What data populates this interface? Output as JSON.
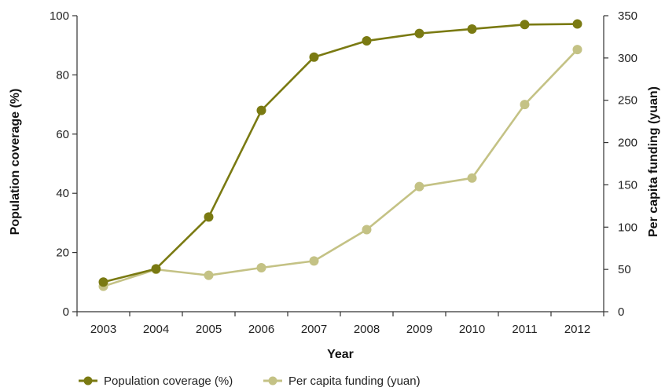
{
  "chart_data": {
    "type": "line",
    "title": "",
    "xlabel": "Year",
    "ylabel_left": "Population coverage (%)",
    "ylabel_right": "Per capita funding (yuan)",
    "categories": [
      "2003",
      "2004",
      "2005",
      "2006",
      "2007",
      "2008",
      "2009",
      "2010",
      "2011",
      "2012"
    ],
    "y_left": {
      "lim": [
        0,
        100
      ],
      "ticks": [
        "0",
        "20",
        "40",
        "60",
        "80",
        "100"
      ]
    },
    "y_right": {
      "lim": [
        0,
        350
      ],
      "ticks": [
        "0",
        "50",
        "100",
        "150",
        "200",
        "250",
        "300",
        "350"
      ]
    },
    "series": [
      {
        "name": "Population coverage (%)",
        "axis": "left",
        "color": "#7a7a12",
        "values": [
          10,
          14.5,
          32,
          68,
          86,
          91.5,
          94,
          95.5,
          97,
          97.2
        ]
      },
      {
        "name": "Per capita funding (yuan)",
        "axis": "right",
        "color": "#c4c285",
        "values": [
          30,
          50,
          43,
          52,
          60,
          97,
          148,
          158,
          245,
          310
        ]
      }
    ],
    "grid": false,
    "legend_position": "bottom-left"
  }
}
